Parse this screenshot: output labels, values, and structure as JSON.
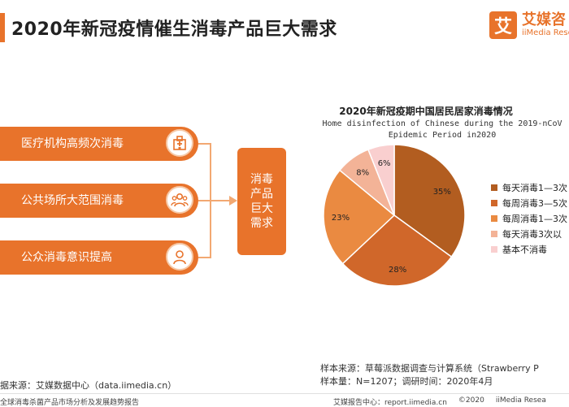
{
  "header": {
    "title": "2020年新冠疫情催生消毒产品巨大需求"
  },
  "logo": {
    "mark": "艾",
    "cn": "艾媒咨",
    "en": "iiMedia Rese"
  },
  "left_items": [
    {
      "label": "医疗机构高频次消毒",
      "icon": "hospital-icon"
    },
    {
      "label": "公共场所大范围消毒",
      "icon": "crowd-icon"
    },
    {
      "label": "公众消毒意识提高",
      "icon": "person-icon"
    }
  ],
  "center_box": {
    "text": "消毒产品巨大需求"
  },
  "colors": {
    "accent": "#e8732b"
  },
  "chart_data": {
    "type": "pie",
    "title": "2020年新冠疫期中国居民居家消毒情况",
    "subtitle_line1": "Home disinfection of Chinese during the 2019-nCoV",
    "subtitle_line2": "Epidemic Period in2020",
    "categories": [
      "每天消毒1—3次",
      "每周消毒3—5次",
      "每周消毒1—3次",
      "每天消毒3次以",
      "基本不消毒"
    ],
    "values": [
      35,
      28,
      23,
      8,
      6
    ],
    "labels": [
      "35%",
      "28%",
      "23%",
      "8%",
      "6%"
    ],
    "colors": [
      "#b25d20",
      "#d0672a",
      "#ea8a41",
      "#f3b397",
      "#f9cfcf"
    ],
    "legend_position": "right"
  },
  "sources": {
    "right_line1": "样本来源：草莓派数据调查与计算系统（Strawberry P",
    "right_line2": "样本量：N=1207；调研时间：2020年4月",
    "left": "据来源：艾媒数据中心（data.iimedia.cn）"
  },
  "footer": {
    "left": "全球消毒杀菌产品市场分析及发展趋势报告",
    "right_report": "艾媒报告中心：report.iimedia.cn",
    "right_copy": "©2020",
    "right_brand": "iiMedia Resea"
  }
}
